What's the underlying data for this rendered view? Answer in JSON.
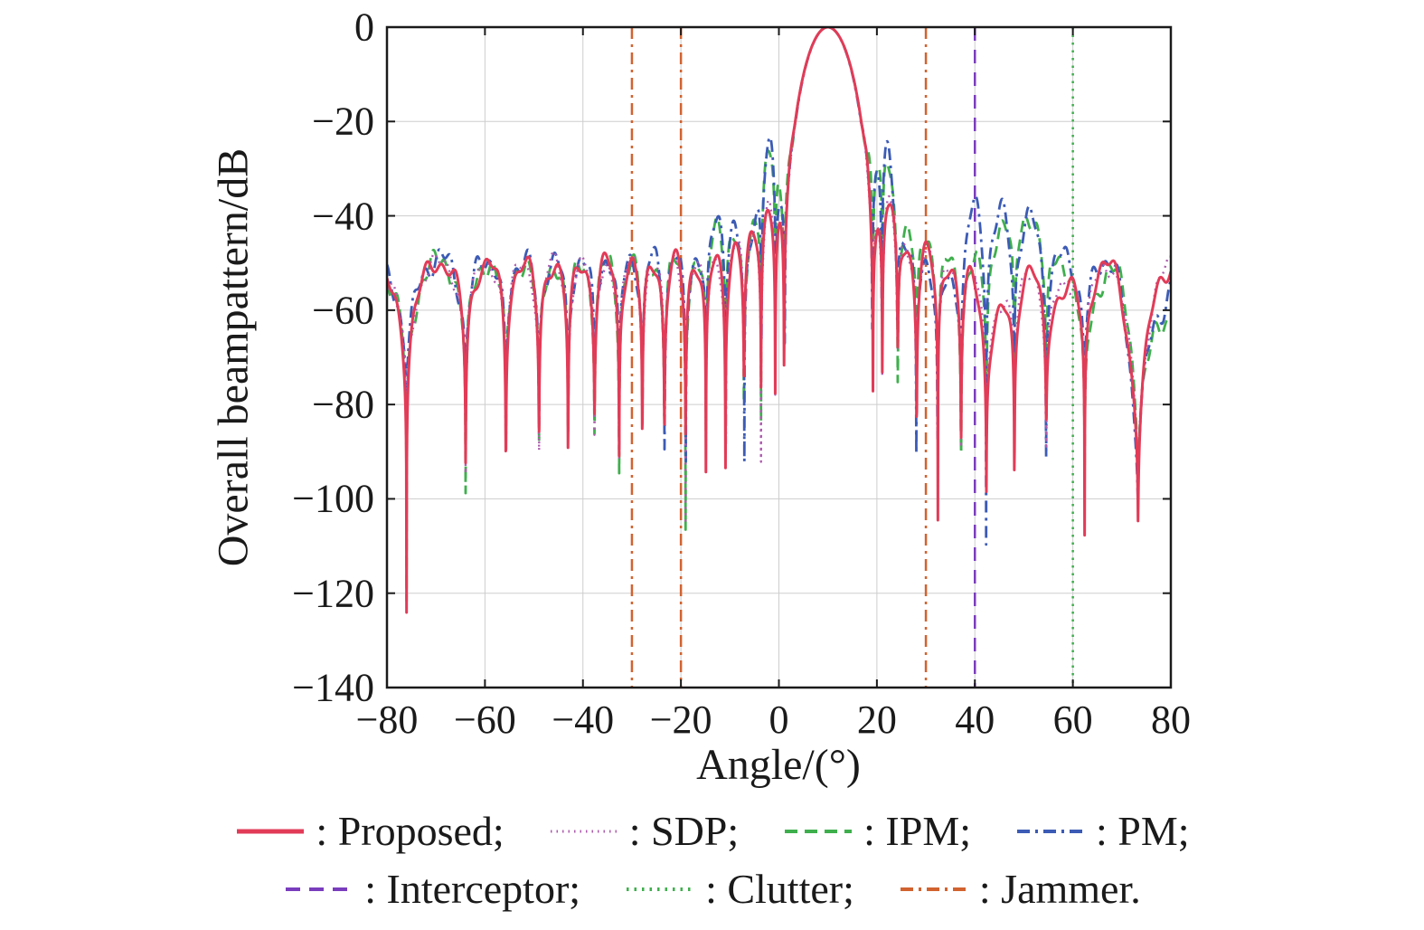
{
  "figure": {
    "background": "#ffffff"
  },
  "chart_data": {
    "type": "line",
    "title": "",
    "xlabel": "Angle/(°)",
    "ylabel": "Overall beampattern/dB",
    "xlim": [
      -80,
      80
    ],
    "ylim": [
      -140,
      0
    ],
    "xticks": [
      -80,
      -60,
      -40,
      -20,
      0,
      20,
      40,
      60,
      80
    ],
    "yticks": [
      0,
      -20,
      -40,
      -60,
      -80,
      -100,
      -120,
      -140
    ],
    "grid": true,
    "grid_color": "#cdcdcd",
    "axis_color": "#1a1a1a",
    "beam_model": {
      "elements": 28,
      "steer_angle_deg": 10,
      "element_spacing_wavelengths": 0.5,
      "sample_step_deg": 0.05,
      "mainlobe_peak_db": 0
    },
    "series": [
      {
        "name": "IPM",
        "color": "#3faf4d",
        "style": "dashed",
        "dash": [
          13,
          8
        ],
        "width": 2.8,
        "sidelobe_db": 50,
        "bumps": [
          [
            -2,
            24,
            3.2
          ],
          [
            21.5,
            24,
            3.2
          ],
          [
            -11.5,
            10,
            3
          ],
          [
            29,
            7,
            3
          ],
          [
            47,
            10,
            4
          ],
          [
            53,
            9,
            3.5
          ],
          [
            63,
            -5,
            4
          ],
          [
            74,
            -14,
            3
          ],
          [
            79,
            -10,
            3
          ]
        ],
        "jitter": {
          "a1": 1.8,
          "f1": 0.9,
          "p1": 2.2,
          "a2": 1.4,
          "f2": 2.6,
          "p2": 2.9
        },
        "floor": {
          "base": 103,
          "var": 25,
          "f": 0.44,
          "phase": 3.6
        }
      },
      {
        "name": "PM",
        "color": "#3c5bb5",
        "style": "dashdot",
        "dash": [
          13,
          6,
          3,
          6
        ],
        "width": 2.8,
        "sidelobe_db": 49,
        "bumps": [
          [
            -2,
            23,
            3.2
          ],
          [
            21.5,
            23,
            3.2
          ],
          [
            -11.5,
            10,
            3
          ],
          [
            35,
            -6,
            3
          ],
          [
            40,
            11,
            3.2
          ],
          [
            46,
            9,
            3
          ],
          [
            52,
            8,
            3.5
          ],
          [
            73,
            -18,
            3
          ],
          [
            78,
            -8,
            3
          ]
        ],
        "jitter": {
          "a1": 1.8,
          "f1": 1.05,
          "p1": 4.0,
          "a2": 1.5,
          "f2": 2.4,
          "p2": 5.1
        },
        "floor": {
          "base": 102,
          "var": 27,
          "f": 0.5,
          "phase": 5.2
        }
      },
      {
        "name": "SDP",
        "color": "#ad5cad",
        "style": "dotted",
        "dash": [
          2,
          5
        ],
        "width": 2.4,
        "sidelobe_db": 50,
        "bumps": [
          [
            -2,
            13,
            2.8
          ],
          [
            22,
            13,
            3
          ],
          [
            -8,
            5,
            2.5
          ],
          [
            29,
            3,
            2.5
          ],
          [
            44,
            -10,
            4
          ],
          [
            57,
            -5,
            4
          ],
          [
            73,
            -14,
            3
          ]
        ],
        "jitter": {
          "a1": 1.4,
          "f1": 0.8,
          "p1": 1.1,
          "a2": 1.1,
          "f2": 2.3,
          "p2": 0.4
        },
        "floor": {
          "base": 104,
          "var": 24,
          "f": 0.37,
          "phase": 1.9
        }
      },
      {
        "name": "Proposed",
        "color": "#e23b57",
        "style": "solid",
        "dash": [],
        "width": 3,
        "sidelobe_db": 50,
        "bumps": [
          [
            -2,
            13,
            2.8
          ],
          [
            22,
            13,
            3
          ],
          [
            -8,
            5,
            2.5
          ],
          [
            29,
            3,
            2.5
          ],
          [
            44,
            -12,
            4
          ],
          [
            57,
            -6,
            4
          ],
          [
            73,
            -15,
            3
          ]
        ],
        "jitter": {
          "a1": 1.5,
          "f1": 0.85,
          "p1": 0.3,
          "a2": 1.2,
          "f2": 2.1,
          "p2": 1.7
        },
        "floor": {
          "base": 106,
          "var": 26,
          "f": 0.41,
          "phase": 0.7
        }
      }
    ],
    "markers": [
      {
        "name": "Jammer",
        "angles_deg": [
          -30,
          -20,
          30
        ],
        "color": "#d2622f",
        "dash": [
          13,
          6,
          3,
          6
        ],
        "width": 2.5
      },
      {
        "name": "Interceptor",
        "angles_deg": [
          40
        ],
        "color": "#7a3dbd",
        "dash": [
          15,
          10
        ],
        "width": 2.5
      },
      {
        "name": "Clutter",
        "angles_deg": [
          60
        ],
        "color": "#3faf4d",
        "dash": [
          2.5,
          6
        ],
        "width": 2.5
      }
    ]
  },
  "legend": {
    "rows": [
      [
        {
          "name": "proposed",
          "text": ": Proposed;",
          "color": "#e23b57",
          "dash": "none",
          "width": 5
        },
        {
          "name": "sdp",
          "text": ": SDP;",
          "color": "#ad5cad",
          "dash": "1.5 5",
          "width": 3
        },
        {
          "name": "ipm",
          "text": ": IPM;",
          "color": "#3faf4d",
          "dash": "14 8",
          "width": 4
        },
        {
          "name": "pm",
          "text": ": PM;",
          "color": "#3c5bb5",
          "dash": "14 6 3 6",
          "width": 4
        }
      ],
      [
        {
          "name": "interceptor",
          "text": ": Interceptor;",
          "color": "#7a3dbd",
          "dash": "16 10",
          "width": 4
        },
        {
          "name": "clutter",
          "text": ": Clutter;",
          "color": "#3faf4d",
          "dash": "2.5 6",
          "width": 4
        },
        {
          "name": "jammer",
          "text": ": Jammer.",
          "color": "#d2622f",
          "dash": "14 6 3 6",
          "width": 4
        }
      ]
    ]
  }
}
